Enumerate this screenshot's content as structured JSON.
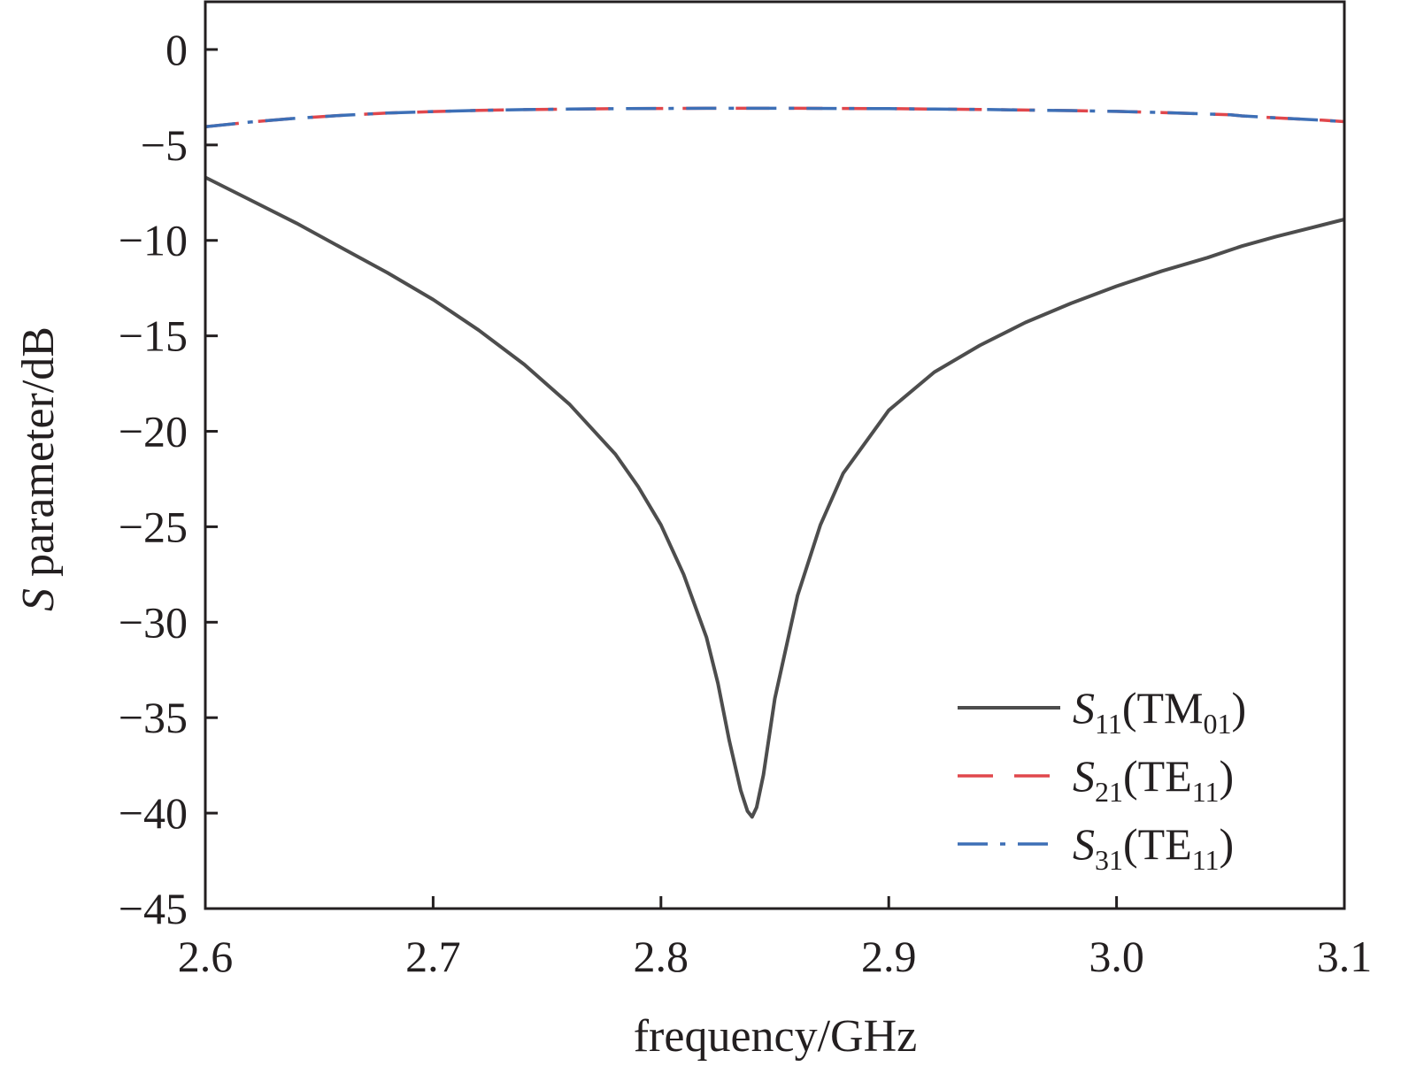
{
  "chart_data": {
    "type": "line",
    "title": "",
    "xlabel": "frequency/GHz",
    "ylabel": {
      "italic": "S",
      "rest": " parameter/dB"
    },
    "xlim": [
      2.6,
      3.1
    ],
    "ylim": [
      -45,
      2.5
    ],
    "xticks": [
      2.6,
      2.7,
      2.8,
      2.9,
      3.0,
      3.1
    ],
    "xtick_labels": [
      "2.6",
      "2.7",
      "2.8",
      "2.9",
      "3.0",
      "3.1"
    ],
    "yticks": [
      0,
      -5,
      -10,
      -15,
      -20,
      -25,
      -30,
      -35,
      -40,
      -45
    ],
    "ytick_labels": [
      "0",
      "−5",
      "−10",
      "−15",
      "−20",
      "−25",
      "−30",
      "−35",
      "−40",
      "−45"
    ],
    "grid": false,
    "legend_position": "bottom-right",
    "series": [
      {
        "name": "S11(TM01)",
        "label_main": "S",
        "label_sub": "11",
        "label_mode": "TM",
        "label_mode_sub": "01",
        "color": "#4d4d4d",
        "style": "solid",
        "x": [
          2.6,
          2.62,
          2.64,
          2.66,
          2.68,
          2.7,
          2.72,
          2.74,
          2.76,
          2.78,
          2.79,
          2.8,
          2.81,
          2.82,
          2.825,
          2.83,
          2.835,
          2.838,
          2.84,
          2.842,
          2.845,
          2.85,
          2.86,
          2.87,
          2.88,
          2.9,
          2.92,
          2.94,
          2.96,
          2.98,
          3.0,
          3.02,
          3.04,
          3.05,
          3.055,
          3.07,
          3.09,
          3.1
        ],
        "y": [
          -6.7,
          -7.9,
          -9.1,
          -10.4,
          -11.7,
          -13.1,
          -14.7,
          -16.5,
          -18.6,
          -21.2,
          -22.9,
          -24.9,
          -27.5,
          -30.8,
          -33.2,
          -36.2,
          -38.8,
          -39.9,
          -40.2,
          -39.7,
          -38.0,
          -34.0,
          -28.6,
          -24.9,
          -22.2,
          -18.9,
          -16.9,
          -15.5,
          -14.3,
          -13.3,
          -12.4,
          -11.6,
          -10.9,
          -10.5,
          -10.3,
          -9.8,
          -9.2,
          -8.9
        ]
      },
      {
        "name": "S21(TE11)",
        "label_main": "S",
        "label_sub": "21",
        "label_mode": "TE",
        "label_mode_sub": "11",
        "color": "#e0474c",
        "style": "dashed",
        "x": [
          2.6,
          2.62,
          2.64,
          2.66,
          2.68,
          2.7,
          2.72,
          2.74,
          2.76,
          2.78,
          2.8,
          2.82,
          2.84,
          2.86,
          2.88,
          2.9,
          2.92,
          2.94,
          2.96,
          2.98,
          3.0,
          3.02,
          3.04,
          3.05,
          3.055,
          3.07,
          3.09,
          3.1
        ],
        "y": [
          -4.05,
          -3.8,
          -3.6,
          -3.45,
          -3.33,
          -3.25,
          -3.19,
          -3.15,
          -3.12,
          -3.1,
          -3.09,
          -3.08,
          -3.08,
          -3.08,
          -3.09,
          -3.1,
          -3.12,
          -3.14,
          -3.17,
          -3.2,
          -3.24,
          -3.3,
          -3.38,
          -3.42,
          -3.48,
          -3.58,
          -3.7,
          -3.78
        ]
      },
      {
        "name": "S31(TE11)",
        "label_main": "S",
        "label_sub": "31",
        "label_mode": "TE",
        "label_mode_sub": "11",
        "color": "#3d6fb6",
        "style": "dashdot",
        "x": [
          2.6,
          2.62,
          2.64,
          2.66,
          2.68,
          2.7,
          2.72,
          2.74,
          2.76,
          2.78,
          2.8,
          2.82,
          2.84,
          2.86,
          2.88,
          2.9,
          2.92,
          2.94,
          2.96,
          2.98,
          3.0,
          3.02,
          3.04,
          3.05,
          3.055,
          3.07,
          3.09,
          3.1
        ],
        "y": [
          -4.05,
          -3.8,
          -3.6,
          -3.45,
          -3.33,
          -3.25,
          -3.19,
          -3.15,
          -3.12,
          -3.1,
          -3.09,
          -3.08,
          -3.08,
          -3.08,
          -3.09,
          -3.1,
          -3.12,
          -3.14,
          -3.17,
          -3.2,
          -3.24,
          -3.3,
          -3.38,
          -3.42,
          -3.48,
          -3.58,
          -3.7,
          -3.78
        ]
      }
    ]
  }
}
